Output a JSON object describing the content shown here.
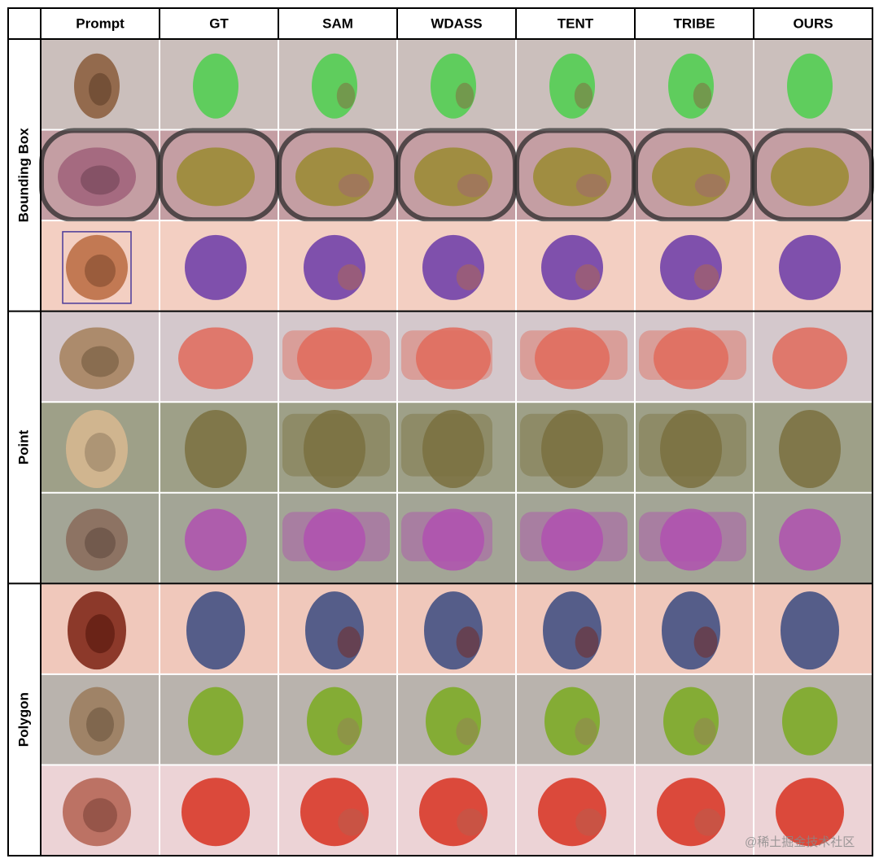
{
  "columns": [
    "Prompt",
    "GT",
    "SAM",
    "WDASS",
    "TENT",
    "TRIBE",
    "OURS"
  ],
  "groups": [
    {
      "label": "Bounding Box"
    },
    {
      "label": "Point"
    },
    {
      "label": "Polygon"
    }
  ],
  "watermark": "@稀土掘金技术社区"
}
